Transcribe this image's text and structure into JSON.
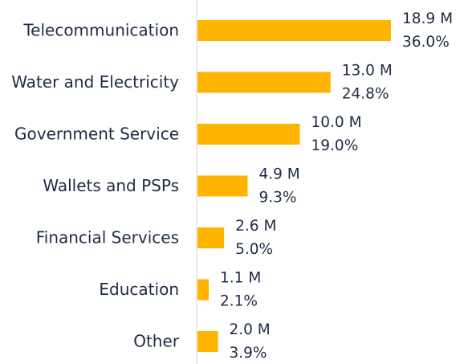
{
  "chart_data": {
    "type": "bar",
    "orientation": "horizontal",
    "color": "#ffb500",
    "categories": [
      "Telecommunication",
      "Water and Electricity",
      "Government Service",
      "Wallets and PSPs",
      "Financial Services",
      "Education",
      "Other"
    ],
    "values": [
      18.9,
      13.0,
      10.0,
      4.9,
      2.6,
      1.1,
      2.0
    ],
    "value_labels": [
      "18.9 M",
      "13.0 M",
      "10.0 M",
      "4.9 M",
      "2.6 M",
      "1.1 M",
      "2.0 M"
    ],
    "shares": [
      36.0,
      24.8,
      19.0,
      9.3,
      5.0,
      2.1,
      3.9
    ],
    "share_labels": [
      "36.0%",
      "24.8%",
      "19.0%",
      "9.3%",
      "5.0%",
      "2.1%",
      "3.9%"
    ]
  }
}
